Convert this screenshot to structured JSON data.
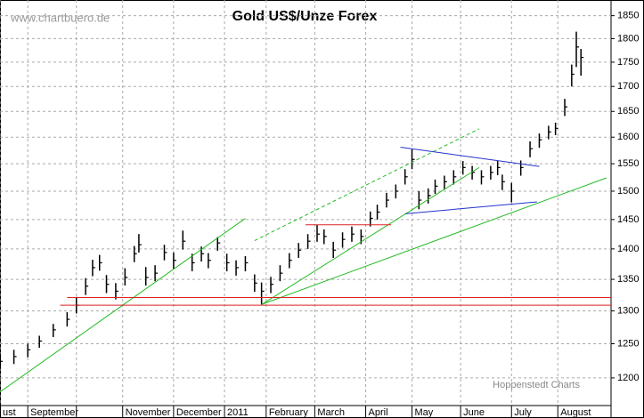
{
  "chart_data": {
    "type": "ohlc",
    "title": "Gold US$/Unze Forex",
    "watermark": "www.chartbuero.de",
    "source": "Hoppenstedt Charts",
    "log_y": true,
    "grid": true,
    "color": "#000000",
    "xlim": [
      0,
      264
    ],
    "ylim": [
      1161,
      1885
    ],
    "yticks": [
      1200,
      1250,
      1300,
      1350,
      1400,
      1450,
      1500,
      1550,
      1600,
      1650,
      1700,
      1750,
      1800,
      1850
    ],
    "xticks": [
      {
        "value": 0,
        "label": "ust"
      },
      {
        "value": 12,
        "label": "September"
      },
      {
        "value": 33,
        "label": null
      },
      {
        "value": 53,
        "label": "November"
      },
      {
        "value": 75,
        "label": "December"
      },
      {
        "value": 97,
        "label": "2011"
      },
      {
        "value": 115,
        "label": "February"
      },
      {
        "value": 136,
        "label": "March"
      },
      {
        "value": 158,
        "label": "April"
      },
      {
        "value": 178,
        "label": "May"
      },
      {
        "value": 199,
        "label": "June"
      },
      {
        "value": 221,
        "label": "July"
      },
      {
        "value": 241,
        "label": "August"
      }
    ],
    "x": [
      0,
      6,
      12,
      17,
      23,
      29,
      33,
      37,
      40,
      43,
      46,
      50,
      54,
      58,
      60,
      63,
      67,
      71,
      75,
      79,
      83,
      87,
      90,
      94,
      98,
      102,
      106,
      110,
      113,
      117,
      121,
      125,
      129,
      133,
      137,
      140,
      144,
      148,
      152,
      156,
      160,
      163,
      167,
      171,
      175,
      178,
      181,
      185,
      188,
      192,
      196,
      200,
      204,
      208,
      212,
      215,
      217,
      221,
      225,
      229,
      233,
      237,
      240,
      244,
      247,
      249,
      251
    ],
    "high": [
      1235,
      1241,
      1250,
      1262,
      1280,
      1298,
      1322,
      1352,
      1382,
      1390,
      1357,
      1344,
      1368,
      1405,
      1425,
      1370,
      1373,
      1407,
      1394,
      1431,
      1392,
      1404,
      1393,
      1420,
      1392,
      1381,
      1388,
      1358,
      1345,
      1354,
      1373,
      1393,
      1410,
      1425,
      1441,
      1433,
      1412,
      1428,
      1438,
      1433,
      1464,
      1476,
      1497,
      1512,
      1540,
      1577,
      1500,
      1505,
      1521,
      1528,
      1538,
      1555,
      1546,
      1538,
      1546,
      1556,
      1530,
      1515,
      1556,
      1592,
      1607,
      1622,
      1628,
      1675,
      1745,
      1815,
      1778
    ],
    "low": [
      1213,
      1220,
      1230,
      1244,
      1260,
      1276,
      1296,
      1325,
      1355,
      1364,
      1328,
      1318,
      1340,
      1378,
      1394,
      1340,
      1347,
      1381,
      1367,
      1399,
      1363,
      1379,
      1368,
      1397,
      1363,
      1356,
      1363,
      1330,
      1310,
      1328,
      1347,
      1368,
      1385,
      1400,
      1412,
      1408,
      1385,
      1402,
      1412,
      1408,
      1438,
      1450,
      1471,
      1487,
      1512,
      1540,
      1468,
      1478,
      1495,
      1503,
      1512,
      1530,
      1521,
      1512,
      1521,
      1529,
      1502,
      1480,
      1528,
      1562,
      1580,
      1596,
      1604,
      1641,
      1700,
      1740,
      1722
    ],
    "close": [
      1224,
      1231,
      1241,
      1254,
      1271,
      1287,
      1309,
      1339,
      1369,
      1377,
      1342,
      1331,
      1353,
      1392,
      1407,
      1353,
      1360,
      1394,
      1381,
      1413,
      1377,
      1392,
      1381,
      1410,
      1377,
      1369,
      1377,
      1344,
      1331,
      1342,
      1360,
      1381,
      1398,
      1413,
      1425,
      1421,
      1398,
      1416,
      1425,
      1421,
      1452,
      1463,
      1484,
      1500,
      1526,
      1558,
      1484,
      1492,
      1509,
      1517,
      1526,
      1543,
      1534,
      1526,
      1534,
      1543,
      1517,
      1500,
      1543,
      1578,
      1595,
      1610,
      1617,
      1659,
      1725,
      1782,
      1760
    ],
    "lines": [
      {
        "x": [
          0,
          106
        ],
        "y": [
          1180,
          1452
        ],
        "color": "#22bb22",
        "dashed": false
      },
      {
        "x": [
          113,
          262
        ],
        "y": [
          1310,
          1524
        ],
        "color": "#22bb22",
        "dashed": false
      },
      {
        "x": [
          113,
          207
        ],
        "y": [
          1310,
          1543
        ],
        "color": "#22bb22",
        "dashed": false
      },
      {
        "x": [
          110,
          207
        ],
        "y": [
          1414,
          1616
        ],
        "color": "#22bb22",
        "dashed": true
      },
      {
        "x": [
          173,
          233
        ],
        "y": [
          1581,
          1545
        ],
        "color": "#2233cc",
        "dashed": false
      },
      {
        "x": [
          175,
          232
        ],
        "y": [
          1460,
          1481
        ],
        "color": "#2233cc",
        "dashed": false
      },
      {
        "x": [
          29,
          264
        ],
        "y": [
          1321,
          1321
        ],
        "color": "#dd2222",
        "dashed": false
      },
      {
        "x": [
          26,
          264
        ],
        "y": [
          1309,
          1309
        ],
        "color": "#dd2222",
        "dashed": false
      },
      {
        "x": [
          132,
          169
        ],
        "y": [
          1441,
          1441
        ],
        "color": "#dd2222",
        "dashed": false
      }
    ]
  }
}
